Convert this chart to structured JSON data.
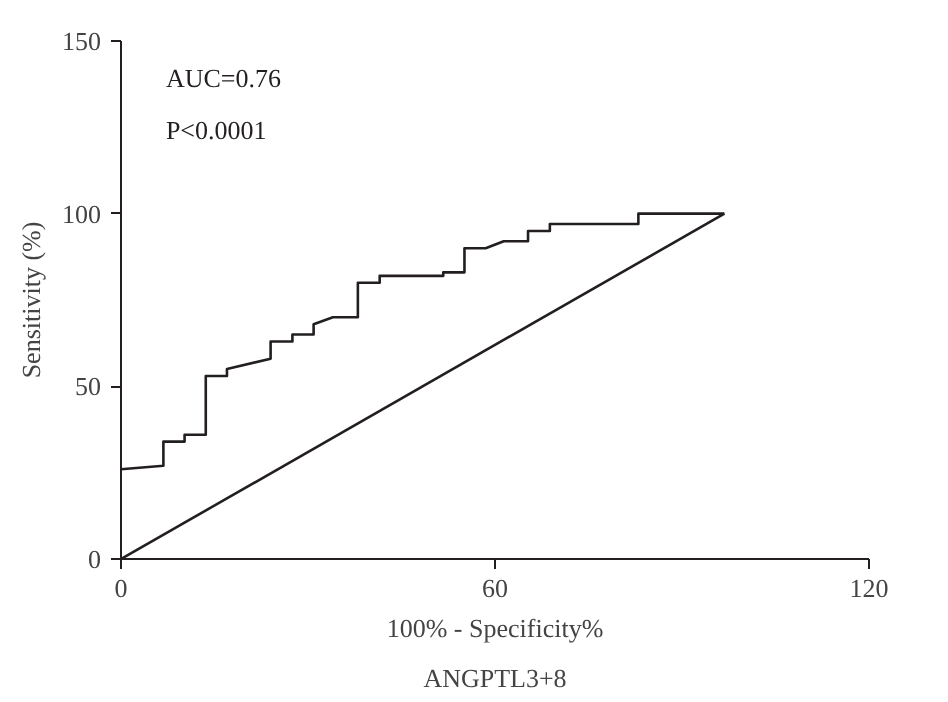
{
  "chart_data": {
    "type": "line",
    "title": "ANGPTL3+8",
    "xlabel": "100% - Specificity%",
    "ylabel": "Sensitivity (%)",
    "xlim": [
      0,
      120
    ],
    "ylim": [
      0,
      150
    ],
    "xticks": [
      0,
      60,
      120
    ],
    "yticks": [
      0,
      50,
      100,
      150
    ],
    "grid": false,
    "marker": "none",
    "line_style": "solid",
    "annotations": [
      "AUC=0.76",
      "P<0.0001"
    ],
    "series": [
      {
        "color": "#231f20",
        "x": [
          0,
          6.8,
          6.8,
          10.2,
          10.2,
          13.6,
          13.6,
          17,
          17,
          24,
          24,
          27.5,
          27.5,
          30.9,
          30.9,
          34,
          38,
          38,
          41.5,
          41.5,
          51.7,
          51.7,
          55.1,
          55.1,
          58.5,
          61.4,
          65.3,
          65.3,
          68.8,
          68.8,
          83,
          83,
          96.8
        ],
        "values": [
          26,
          27,
          34,
          34,
          36,
          36,
          53,
          53,
          55,
          58,
          63,
          63,
          65,
          65,
          68,
          70,
          70,
          80,
          80,
          82,
          82,
          83,
          83,
          90,
          90,
          92,
          92,
          95,
          95,
          97,
          97,
          100,
          100
        ]
      },
      {
        "color": "#231f20",
        "x": [
          0,
          96.8
        ],
        "values": [
          0,
          100
        ]
      }
    ]
  }
}
